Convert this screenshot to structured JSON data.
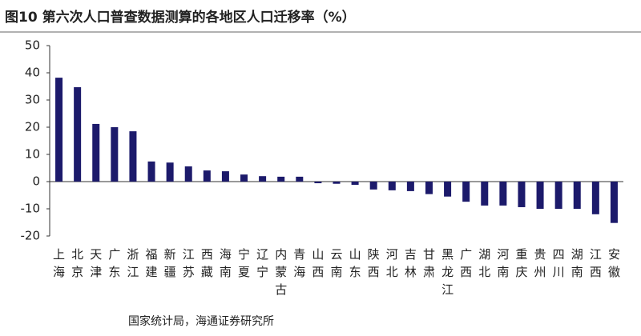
{
  "chart_data": {
    "type": "bar",
    "title": "图10 第六次人口普查数据测算的各地区人口迁移率（%）",
    "source": "国家统计局，海通证券研究所",
    "categories": [
      "上海",
      "北京",
      "天津",
      "广东",
      "浙江",
      "福建",
      "新疆",
      "江苏",
      "西藏",
      "海南",
      "宁夏",
      "辽宁",
      "内蒙古",
      "青海",
      "山西",
      "云南",
      "山东",
      "陕西",
      "河北",
      "吉林",
      "甘肃",
      "黑龙江",
      "广西",
      "湖北",
      "河南",
      "重庆",
      "贵州",
      "四川",
      "湖南",
      "江西",
      "安徽"
    ],
    "values": [
      38.2,
      34.7,
      21.2,
      20,
      18.5,
      7.4,
      7,
      5.6,
      4.1,
      3.8,
      2.6,
      2,
      1.8,
      1.8,
      -0.6,
      -0.8,
      -1.2,
      -2.9,
      -3.2,
      -3.5,
      -4.6,
      -5.5,
      -7.4,
      -8.8,
      -8.8,
      -9.4,
      -10,
      -10,
      -10,
      -12,
      -15.2
    ],
    "color": "#1c1a6b",
    "ylim": [
      -20,
      50
    ],
    "yticks": [
      -20,
      -10,
      0,
      10,
      20,
      30,
      40,
      50
    ],
    "grid": false
  }
}
